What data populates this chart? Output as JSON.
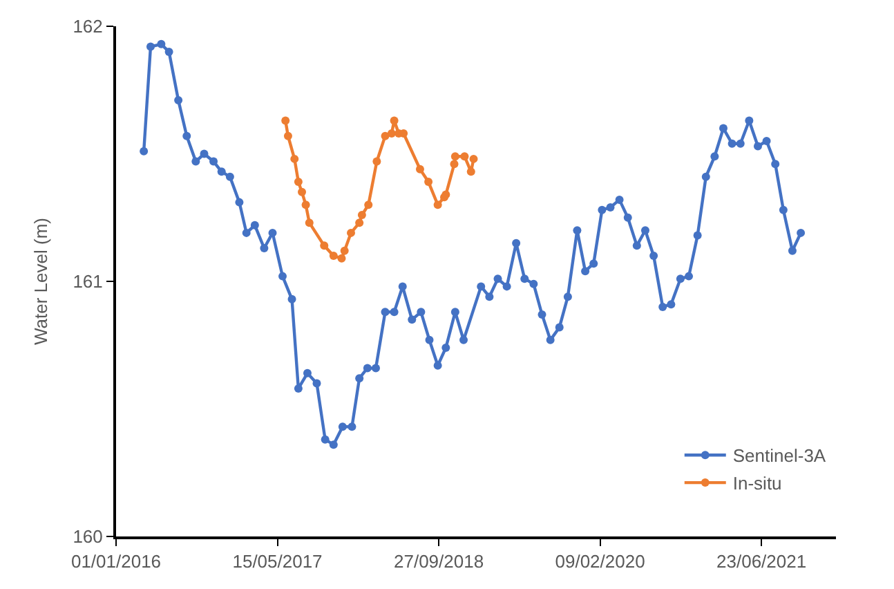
{
  "chart_data": {
    "type": "line",
    "ylabel": "Water Level (m)",
    "marker": "circle",
    "line_style": "solid",
    "legend": "bottom right",
    "xlim": [
      "2016-01-01",
      "2022-02-09"
    ],
    "xticks": [
      {
        "value": "2016-01-01",
        "label": "01/01/2016"
      },
      {
        "value": "2017-05-15",
        "label": "15/05/2017"
      },
      {
        "value": "2018-09-27",
        "label": "27/09/2018"
      },
      {
        "value": "2020-02-09",
        "label": "09/02/2020"
      },
      {
        "value": "2021-06-23",
        "label": "23/06/2021"
      }
    ],
    "ylim": [
      160,
      162
    ],
    "yticks": [
      160,
      161,
      162
    ],
    "series": [
      {
        "name": "Sentinel-3A",
        "color": "#4472c4",
        "x": [
          "2016-03-27",
          "2016-04-17",
          "2016-05-20",
          "2016-06-13",
          "2016-07-12",
          "2016-08-07",
          "2016-09-04",
          "2016-09-30",
          "2016-10-29",
          "2016-11-23",
          "2016-12-19",
          "2017-01-17",
          "2017-02-08",
          "2017-03-06",
          "2017-04-04",
          "2017-04-30",
          "2017-05-31",
          "2017-06-29",
          "2017-07-19",
          "2017-08-16",
          "2017-09-14",
          "2017-10-10",
          "2017-11-05",
          "2017-12-03",
          "2018-01-01",
          "2018-01-24",
          "2018-02-18",
          "2018-03-16",
          "2018-04-14",
          "2018-05-12",
          "2018-06-07",
          "2018-07-06",
          "2018-08-03",
          "2018-08-29",
          "2018-09-24",
          "2018-10-19",
          "2018-11-17",
          "2018-12-13",
          "2019-02-05",
          "2019-03-03",
          "2019-03-29",
          "2019-04-26",
          "2019-05-25",
          "2019-06-20",
          "2019-07-18",
          "2019-08-13",
          "2019-09-08",
          "2019-10-06",
          "2019-11-01",
          "2019-11-30",
          "2019-12-25",
          "2020-01-20",
          "2020-02-15",
          "2020-03-12",
          "2020-04-09",
          "2020-05-05",
          "2020-06-02",
          "2020-06-28",
          "2020-07-24",
          "2020-08-21",
          "2020-09-16",
          "2020-10-15",
          "2020-11-10",
          "2020-12-07",
          "2021-01-02",
          "2021-01-29",
          "2021-02-25",
          "2021-03-24",
          "2021-04-19",
          "2021-05-16",
          "2021-06-12",
          "2021-07-09",
          "2021-08-05",
          "2021-08-30",
          "2021-09-27",
          "2021-10-23"
        ],
        "values": [
          161.51,
          161.92,
          161.93,
          161.9,
          161.71,
          161.57,
          161.47,
          161.5,
          161.47,
          161.43,
          161.41,
          161.31,
          161.19,
          161.22,
          161.13,
          161.19,
          161.02,
          160.93,
          160.58,
          160.64,
          160.6,
          160.38,
          160.36,
          160.43,
          160.43,
          160.62,
          160.66,
          160.66,
          160.88,
          160.88,
          160.98,
          160.85,
          160.88,
          160.77,
          160.67,
          160.74,
          160.88,
          160.77,
          160.98,
          160.94,
          161.01,
          160.98,
          161.15,
          161.01,
          160.99,
          160.87,
          160.77,
          160.82,
          160.94,
          161.2,
          161.04,
          161.07,
          161.28,
          161.29,
          161.32,
          161.25,
          161.14,
          161.2,
          161.1,
          160.9,
          160.91,
          161.01,
          161.02,
          161.18,
          161.41,
          161.49,
          161.6,
          161.54,
          161.54,
          161.63,
          161.53,
          161.55,
          161.46,
          161.28,
          161.12,
          161.19
        ]
      },
      {
        "name": "In-situ",
        "color": "#ed7d31",
        "x": [
          "2017-06-09",
          "2017-06-17",
          "2017-07-07",
          "2017-07-19",
          "2017-07-30",
          "2017-08-11",
          "2017-08-22",
          "2017-10-07",
          "2017-11-05",
          "2017-11-30",
          "2017-12-09",
          "2017-12-29",
          "2018-01-24",
          "2018-02-01",
          "2018-02-21",
          "2018-03-19",
          "2018-04-14",
          "2018-05-04",
          "2018-05-12",
          "2018-05-26",
          "2018-06-10",
          "2018-07-31",
          "2018-08-26",
          "2018-09-24",
          "2018-10-14",
          "2018-10-19",
          "2018-11-14",
          "2018-11-17",
          "2018-12-16",
          "2019-01-05",
          "2019-01-13"
        ],
        "values": [
          161.63,
          161.57,
          161.48,
          161.39,
          161.35,
          161.3,
          161.23,
          161.14,
          161.1,
          161.09,
          161.12,
          161.19,
          161.23,
          161.26,
          161.3,
          161.47,
          161.57,
          161.58,
          161.63,
          161.58,
          161.58,
          161.44,
          161.39,
          161.3,
          161.33,
          161.34,
          161.46,
          161.49,
          161.49,
          161.43,
          161.48
        ]
      }
    ]
  }
}
